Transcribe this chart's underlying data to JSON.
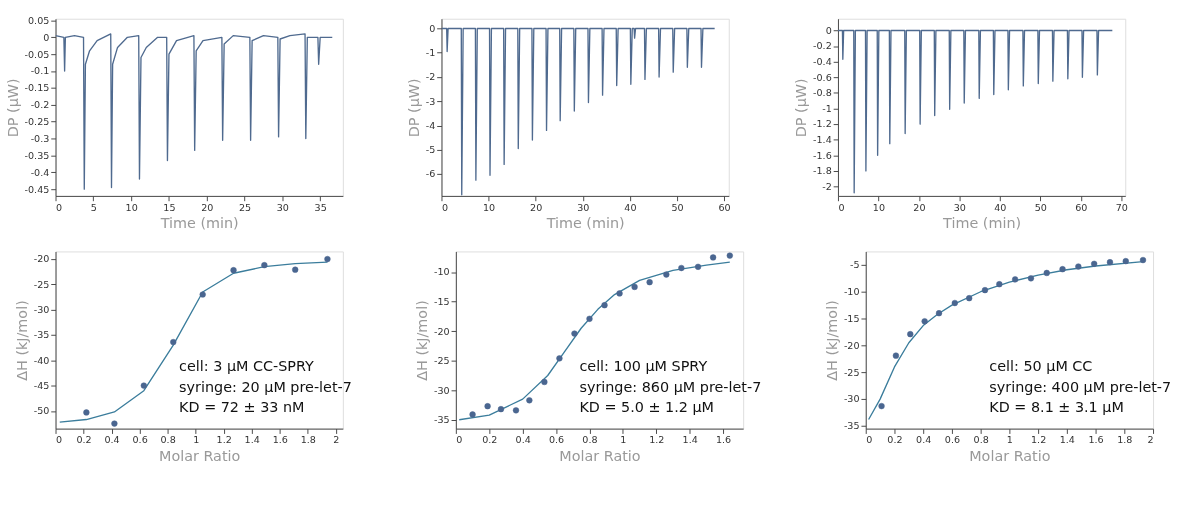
{
  "chart_data": [
    {
      "type": "line",
      "xlabel": "Time (min)",
      "ylabel": "DP (μW)",
      "xlim": [
        0,
        38
      ],
      "ylim": [
        -0.47,
        0.055
      ],
      "xticks": [
        0,
        5,
        10,
        15,
        20,
        25,
        30,
        35
      ],
      "yticks": [
        0.05,
        0,
        -0.05,
        -0.1,
        -0.15,
        -0.2,
        -0.25,
        -0.3,
        -0.35,
        -0.4,
        -0.45
      ],
      "grid": false,
      "series": [
        {
          "color": "#4f6a8f",
          "x": [
            0,
            1.1,
            1.2,
            1.3,
            2.5,
            3.7,
            3.8,
            3.95,
            4.5,
            5.5,
            7.3,
            7.4,
            7.55,
            8.2,
            9.5,
            11.0,
            11.1,
            11.3,
            12,
            13.5,
            14.7,
            14.8,
            15,
            16,
            18.3,
            18.4,
            18.6,
            19.5,
            22.0,
            22.1,
            22.3,
            23.5,
            25.7,
            25.8,
            26,
            27.5,
            29.4,
            29.5,
            29.7,
            31,
            33.0,
            33.1,
            33.3,
            34.7,
            34.8,
            35,
            36.6
          ],
          "values": [
            0.005,
            0.0,
            -0.1,
            0.0,
            0.005,
            0.0,
            -0.45,
            -0.08,
            -0.04,
            -0.01,
            0.01,
            -0.445,
            -0.08,
            -0.03,
            0.0,
            0.005,
            -0.42,
            -0.06,
            -0.03,
            0.0,
            0.0,
            -0.365,
            -0.05,
            -0.01,
            0.005,
            -0.335,
            -0.04,
            -0.01,
            0.0,
            -0.305,
            -0.02,
            0.005,
            0.0,
            -0.305,
            -0.01,
            0.005,
            0.0,
            -0.295,
            -0.005,
            0.005,
            0.01,
            -0.3,
            0.0,
            0.0,
            -0.08,
            0.0,
            0.0
          ]
        }
      ]
    },
    {
      "type": "line",
      "xlabel": "Time (min)",
      "ylabel": "DP (μW)",
      "xlim": [
        0,
        61
      ],
      "ylim": [
        -6.9,
        0.4
      ],
      "xticks": [
        0,
        10,
        20,
        30,
        40,
        50,
        60
      ],
      "yticks": [
        0,
        -1,
        -2,
        -3,
        -4,
        -5,
        -6
      ],
      "grid": false,
      "series": [
        {
          "color": "#4f6a8f",
          "x": [
            0,
            1.1,
            1.2,
            1.4,
            4.2,
            4.3,
            4.6,
            7.2,
            7.3,
            7.6,
            10.2,
            10.3,
            10.6,
            13.2,
            13.3,
            13.6,
            16.2,
            16.3,
            16.6,
            19.2,
            19.3,
            19.6,
            22.2,
            22.3,
            22.6,
            25.1,
            25.2,
            25.5,
            28.1,
            28.2,
            28.5,
            31.1,
            31.2,
            31.5,
            34.1,
            34.2,
            34.5,
            37.1,
            37.2,
            37.5,
            40.1,
            40.2,
            40.5,
            40.9,
            41.0,
            41.2,
            43.1,
            43.2,
            43.5,
            46.1,
            46.2,
            46.5,
            49.1,
            49.2,
            49.5,
            52.1,
            52.2,
            52.5,
            55.1,
            55.2,
            55.5,
            58
          ],
          "values": [
            0,
            0,
            -0.95,
            0,
            0,
            -6.85,
            0,
            0,
            -6.25,
            0,
            0,
            -6.05,
            0,
            0,
            -5.6,
            0,
            0,
            -4.95,
            0,
            0,
            -4.6,
            0,
            0,
            -4.2,
            0,
            0,
            -3.8,
            0,
            0,
            -3.4,
            0,
            0,
            -3.05,
            0,
            0,
            -2.75,
            0,
            0,
            -2.35,
            0,
            0,
            -2.3,
            0,
            0,
            -0.4,
            0,
            0,
            -2.1,
            0,
            0,
            -2.0,
            0,
            0,
            -1.8,
            0,
            0,
            -1.6,
            0,
            0,
            -1.6,
            0,
            0
          ]
        }
      ]
    },
    {
      "type": "line",
      "xlabel": "Time (min)",
      "ylabel": "DP (μW)",
      "xlim": [
        0,
        71
      ],
      "ylim": [
        -2.12,
        0.15
      ],
      "xticks": [
        0,
        10,
        20,
        30,
        40,
        50,
        60,
        70
      ],
      "yticks": [
        0,
        -0.2,
        -0.4,
        -0.6,
        -0.8,
        -1,
        -1.2,
        -1.4,
        -1.6,
        -1.8,
        -2
      ],
      "grid": false,
      "series": [
        {
          "color": "#4f6a8f",
          "x": [
            0,
            1.1,
            1.2,
            1.4,
            3.9,
            4.0,
            4.3,
            6.8,
            6.9,
            7.2,
            9.7,
            9.8,
            10.1,
            12.7,
            12.8,
            13.1,
            16.5,
            16.6,
            16.9,
            20.2,
            20.3,
            20.6,
            23.8,
            23.9,
            24.2,
            27.5,
            27.6,
            27.9,
            31.1,
            31.2,
            31.5,
            34.8,
            34.9,
            35.2,
            38.4,
            38.5,
            38.8,
            42.0,
            42.1,
            42.4,
            45.7,
            45.8,
            46.1,
            49.4,
            49.5,
            49.8,
            53.0,
            53.1,
            53.4,
            56.7,
            56.8,
            57.1,
            60.3,
            60.4,
            60.7,
            64.0,
            64.1,
            64.4,
            67.8
          ],
          "values": [
            0,
            0,
            -0.37,
            0,
            0,
            -2.08,
            0,
            0,
            -1.8,
            0,
            0,
            -1.6,
            0,
            0,
            -1.45,
            0,
            0,
            -1.32,
            0,
            0,
            -1.2,
            0,
            0,
            -1.09,
            0,
            0,
            -1.01,
            0,
            0,
            -0.93,
            0,
            0,
            -0.87,
            0,
            0,
            -0.82,
            0,
            0,
            -0.76,
            0,
            0,
            -0.71,
            0,
            0,
            -0.68,
            0,
            0,
            -0.65,
            0,
            0,
            -0.62,
            0,
            0,
            -0.6,
            0,
            0,
            -0.57,
            0,
            0
          ]
        }
      ]
    },
    {
      "type": "scatter",
      "xlabel": "Molar Ratio",
      "ylabel": "ΔH (kJ/mol)",
      "xlim": [
        0,
        2.05
      ],
      "ylim": [
        -53.5,
        -18.5
      ],
      "xticks": [
        0,
        0.2,
        0.4,
        0.6,
        0.8,
        1,
        1.2,
        1.4,
        1.6,
        1.8,
        2
      ],
      "yticks": [
        -50,
        -45,
        -40,
        -35,
        -30,
        -25,
        -20
      ],
      "grid": false,
      "annotations": [
        "cell: 3 μM CC-SPRY",
        "syringe: 20 μM pre-let-7",
        "KD = 72 ± 33 nM"
      ],
      "series": [
        {
          "type": "scatter",
          "marker": "circle",
          "color": "#4a6690",
          "x": [
            0.22,
            0.42,
            0.63,
            0.84,
            1.05,
            1.27,
            1.49,
            1.71,
            1.94
          ],
          "values": [
            -50.3,
            -52.5,
            -45,
            -36.4,
            -27,
            -22.2,
            -21.2,
            -22.1,
            -20
          ]
        },
        {
          "type": "line",
          "color": "#3b7d9c",
          "x": [
            0.03,
            0.22,
            0.42,
            0.63,
            0.84,
            1.05,
            1.27,
            1.49,
            1.71,
            1.94
          ],
          "values": [
            -52.2,
            -51.7,
            -50.2,
            -46,
            -37,
            -26.5,
            -22.8,
            -21.5,
            -20.9,
            -20.6
          ]
        }
      ]
    },
    {
      "type": "scatter",
      "xlabel": "Molar Ratio",
      "ylabel": "ΔH (kJ/mol)",
      "xlim": [
        0,
        1.72
      ],
      "ylim": [
        -36.5,
        -6.5
      ],
      "xticks": [
        0,
        0.2,
        0.4,
        0.6,
        0.8,
        1,
        1.2,
        1.4,
        1.6
      ],
      "yticks": [
        -35,
        -30,
        -25,
        -20,
        -15,
        -10
      ],
      "grid": false,
      "annotations": [
        "cell: 100 μM SPRY",
        "syringe: 860 μM pre-let-7",
        "KD = 5.0 ± 1.2 μM"
      ],
      "series": [
        {
          "type": "scatter",
          "marker": "circle",
          "color": "#4a6690",
          "x": [
            0.1,
            0.19,
            0.27,
            0.36,
            0.44,
            0.53,
            0.62,
            0.71,
            0.8,
            0.89,
            0.98,
            1.07,
            1.16,
            1.26,
            1.35,
            1.45,
            1.54,
            1.64
          ],
          "values": [
            -34.1,
            -32.7,
            -33.2,
            -33.4,
            -31.7,
            -28.6,
            -24.6,
            -20.4,
            -17.9,
            -15.6,
            -13.6,
            -12.5,
            -11.7,
            -10.4,
            -9.3,
            -9.1,
            -7.5,
            -7.2
          ]
        },
        {
          "type": "line",
          "color": "#3b7d9c",
          "x": [
            0.02,
            0.2,
            0.4,
            0.55,
            0.65,
            0.75,
            0.85,
            0.95,
            1.1,
            1.3,
            1.5,
            1.64
          ],
          "values": [
            -35,
            -34.2,
            -31.5,
            -27.5,
            -23.5,
            -19.5,
            -16.3,
            -13.8,
            -11.4,
            -9.7,
            -8.8,
            -8.3
          ]
        }
      ]
    },
    {
      "type": "scatter",
      "xlabel": "Molar Ratio",
      "ylabel": "ΔH (kJ/mol)",
      "xlim": [
        0,
        2.0
      ],
      "ylim": [
        -35.5,
        -2.5
      ],
      "xticks": [
        0,
        0.2,
        0.4,
        0.6,
        0.8,
        1,
        1.2,
        1.4,
        1.6,
        1.8,
        2
      ],
      "yticks": [
        -35,
        -30,
        -25,
        -20,
        -15,
        -10,
        -5
      ],
      "grid": false,
      "annotations": [
        "cell: 50 μM CC",
        "syringe: 400 μM pre-let-7",
        "KD = 8.1 ± 3.1 μM"
      ],
      "series": [
        {
          "type": "scatter",
          "marker": "circle",
          "color": "#4a6690",
          "x": [
            0.11,
            0.21,
            0.31,
            0.41,
            0.51,
            0.62,
            0.72,
            0.83,
            0.93,
            1.04,
            1.15,
            1.26,
            1.37,
            1.48,
            1.59,
            1.7,
            1.81,
            1.93
          ],
          "values": [
            -31.3,
            -21.9,
            -17.9,
            -15.5,
            -14,
            -12.1,
            -11.2,
            -9.7,
            -8.6,
            -7.7,
            -7.5,
            -6.5,
            -5.8,
            -5.3,
            -4.8,
            -4.5,
            -4.3,
            -4.1
          ]
        },
        {
          "type": "line",
          "color": "#3b7d9c",
          "x": [
            0.02,
            0.1,
            0.2,
            0.3,
            0.4,
            0.5,
            0.6,
            0.8,
            1.0,
            1.2,
            1.4,
            1.6,
            1.93
          ],
          "values": [
            -33.8,
            -30,
            -24,
            -19.5,
            -16.3,
            -14.2,
            -12.5,
            -10.0,
            -8.2,
            -6.9,
            -5.9,
            -5.2,
            -4.4
          ]
        }
      ]
    }
  ]
}
